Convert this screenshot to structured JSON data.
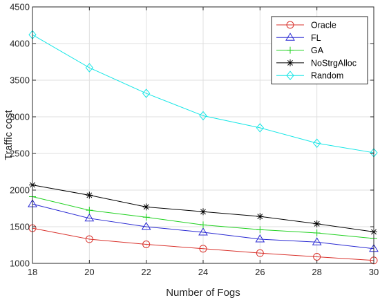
{
  "chart_data": {
    "type": "line",
    "xlabel": "Number of Fogs",
    "ylabel": "Traffic cost",
    "xlim": [
      18,
      30
    ],
    "ylim": [
      1000,
      4500
    ],
    "xticks": [
      18,
      20,
      22,
      24,
      26,
      28,
      30
    ],
    "yticks": [
      1000,
      1500,
      2000,
      2500,
      3000,
      3500,
      4000,
      4500
    ],
    "x": [
      18,
      20,
      22,
      24,
      26,
      28,
      30
    ],
    "grid": true,
    "legend_position": "top-right",
    "series": [
      {
        "name": "Oracle",
        "color": "#d9312b",
        "marker": "circle",
        "values": [
          1480,
          1330,
          1260,
          1200,
          1140,
          1090,
          1040
        ]
      },
      {
        "name": "FL",
        "color": "#2828d2",
        "marker": "triangle",
        "values": [
          1810,
          1615,
          1500,
          1425,
          1330,
          1290,
          1200
        ]
      },
      {
        "name": "GA",
        "color": "#1fd11f",
        "marker": "plus",
        "values": [
          1910,
          1725,
          1630,
          1525,
          1460,
          1415,
          1340
        ]
      },
      {
        "name": "NoStrgAlloc",
        "color": "#000000",
        "marker": "asterisk",
        "values": [
          2070,
          1930,
          1770,
          1705,
          1640,
          1540,
          1430
        ]
      },
      {
        "name": "Random",
        "color": "#14e6e6",
        "marker": "diamond",
        "values": [
          4120,
          3670,
          3320,
          3015,
          2850,
          2640,
          2510
        ]
      }
    ]
  }
}
